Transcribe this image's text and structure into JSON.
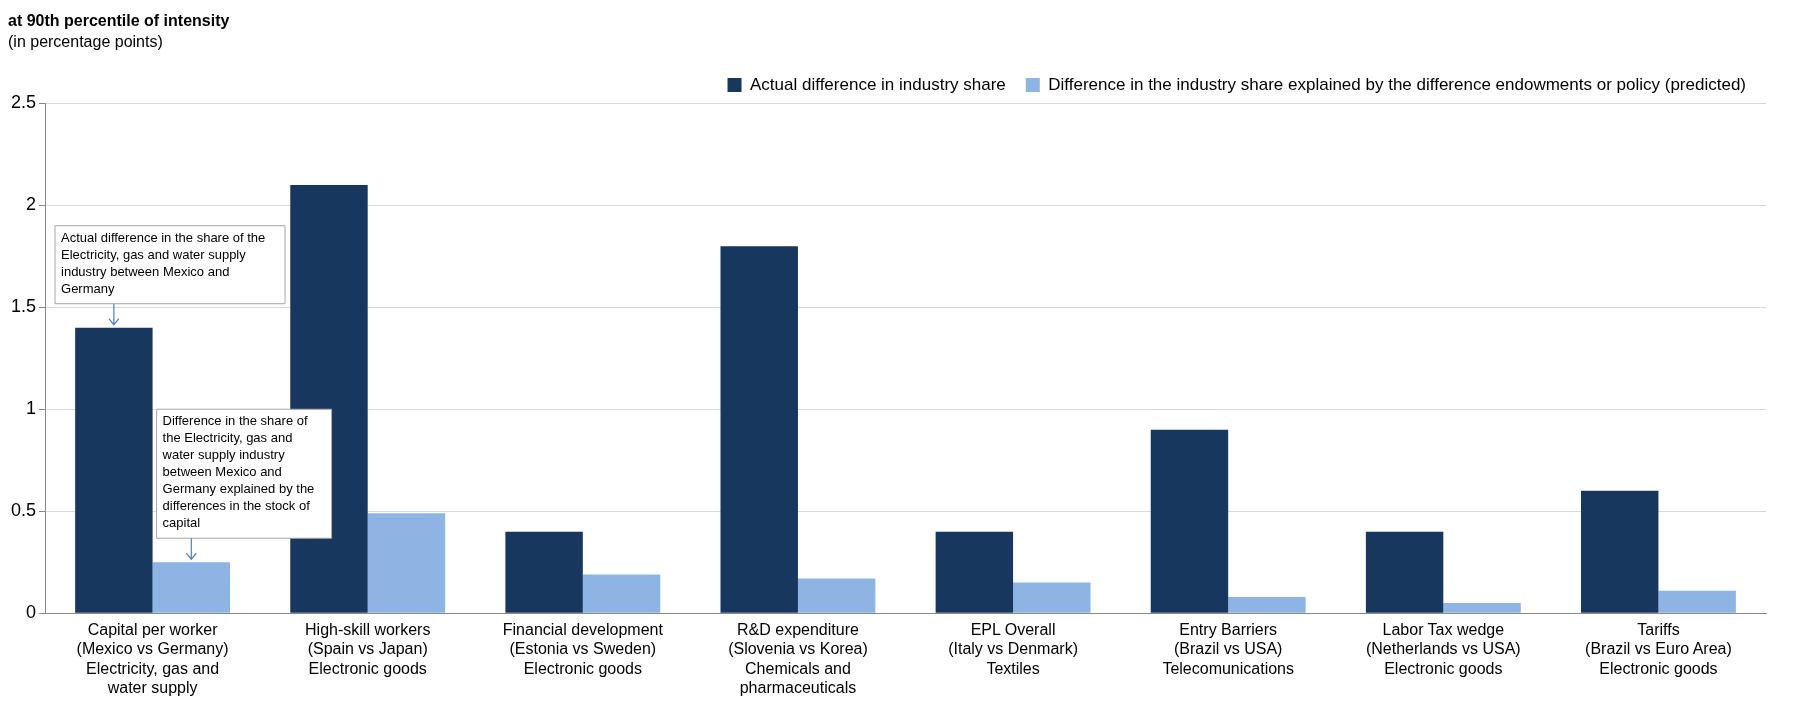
{
  "chart_data": {
    "type": "bar",
    "title": "at 90th percentile of intensity",
    "subtitle": "(in percentage points)",
    "categories": [
      "Capital per worker\n(Mexico vs Germany)\nElectricity, gas and\nwater supply",
      "High-skill workers\n(Spain vs Japan)\nElectronic goods",
      "Financial development\n(Estonia vs Sweden)\nElectronic goods",
      "R&D expenditure\n(Slovenia vs Korea)\nChemicals and\npharmaceuticals",
      "EPL Overall\n(Italy vs Denmark)\nTextiles",
      "Entry Barriers\n(Brazil vs USA)\nTelecomunications",
      "Labor Tax wedge\n(Netherlands vs USA)\nElectronic goods",
      "Tariffs\n(Brazil vs Euro Area)\nElectronic goods"
    ],
    "series": [
      {
        "name": "Actual difference in industry share",
        "color": "#17375e",
        "values": [
          1.4,
          2.1,
          0.4,
          1.8,
          0.4,
          0.9,
          0.4,
          0.6
        ]
      },
      {
        "name": "Difference in the industry share explained by the difference endowments or policy (predicted)",
        "color": "#8db4e2",
        "values": [
          0.25,
          0.49,
          0.19,
          0.17,
          0.15,
          0.08,
          0.05,
          0.11
        ]
      }
    ],
    "ylim": [
      0,
      2.5
    ],
    "yticks": [
      0,
      0.5,
      1,
      1.5,
      2,
      2.5
    ],
    "grid": "y",
    "legend": "top right",
    "annotations": [
      {
        "text": "Actual difference in the share of the Electricity, gas and water supply industry between Mexico and Germany",
        "x": "Capital per worker\n(Mexico vs Germany)\nElectricity, gas and\nwater supply",
        "y": 1.4
      },
      {
        "text": "Difference in the share of the Electricity, gas and water supply industry between Mexico and Germany explained by the differences in the stock of capital",
        "x": "Capital per worker\n(Mexico vs Germany)\nElectricity, gas and\nwater supply",
        "y": 0.25
      }
    ]
  }
}
